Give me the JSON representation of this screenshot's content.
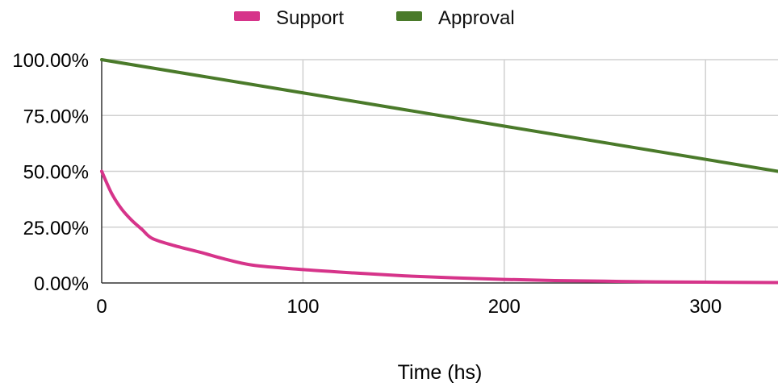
{
  "chart_data": {
    "type": "line",
    "title": "",
    "xlabel": "Time (hs)",
    "ylabel": "",
    "xlim": [
      0,
      336
    ],
    "ylim": [
      0,
      100
    ],
    "x_ticks": [
      0,
      100,
      200,
      300
    ],
    "y_ticks": [
      0,
      25,
      50,
      75,
      100
    ],
    "y_tick_labels": [
      "0.00%",
      "25.00%",
      "50.00%",
      "75.00%",
      "100.00%"
    ],
    "x_tick_labels": [
      "0",
      "100",
      "200",
      "300"
    ],
    "grid": true,
    "legend_position": "top-center",
    "series": [
      {
        "name": "Support",
        "color": "#d6348a",
        "points": [
          [
            0,
            50
          ],
          [
            5,
            40
          ],
          [
            10,
            33
          ],
          [
            15,
            28
          ],
          [
            20,
            24
          ],
          [
            25,
            20
          ],
          [
            35,
            17
          ],
          [
            50,
            13.5
          ],
          [
            60,
            11
          ],
          [
            75,
            8
          ],
          [
            100,
            6
          ],
          [
            125,
            4.5
          ],
          [
            150,
            3.2
          ],
          [
            175,
            2.3
          ],
          [
            200,
            1.6
          ],
          [
            225,
            1.1
          ],
          [
            250,
            0.8
          ],
          [
            275,
            0.5
          ],
          [
            300,
            0.35
          ],
          [
            336,
            0.2
          ]
        ]
      },
      {
        "name": "Approval",
        "color": "#4a7a2a",
        "points": [
          [
            0,
            100
          ],
          [
            336,
            50
          ]
        ]
      }
    ]
  }
}
